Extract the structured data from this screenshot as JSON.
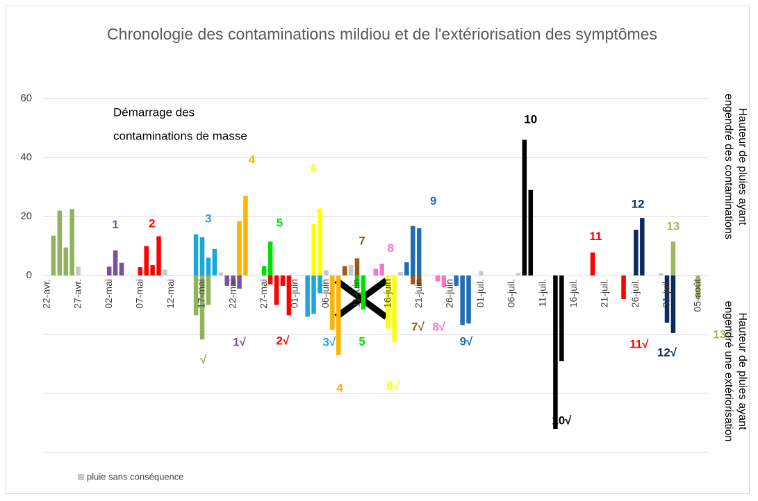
{
  "chart_data": {
    "type": "bar",
    "title": "Chronologie des contaminations mildiou et de l'extériorisation des symptômes",
    "y_title_top": [
      "Hauteur de pluies ayant",
      "engendré des contaminations"
    ],
    "y_title_bottom": [
      "Hauteur de pluies ayant",
      "engendré une extériorisation"
    ],
    "note": [
      "Démarrage des",
      "contaminations de masse"
    ],
    "categories": [
      "22-avr.",
      null,
      null,
      null,
      null,
      "27-avr.",
      null,
      null,
      null,
      null,
      "02-mai",
      null,
      null,
      null,
      null,
      "07-mai",
      null,
      null,
      null,
      null,
      "12-mai",
      null,
      null,
      null,
      null,
      "17-mai",
      null,
      null,
      null,
      null,
      "22-mai",
      null,
      null,
      null,
      null,
      "27-mai",
      null,
      null,
      null,
      null,
      "01-juin",
      null,
      null,
      null,
      null,
      "06-juin",
      null,
      null,
      null,
      null,
      "11-juin",
      null,
      null,
      null,
      null,
      "16-juin",
      null,
      null,
      null,
      null,
      "21-juin",
      null,
      null,
      null,
      null,
      "26-juin",
      null,
      null,
      null,
      null,
      "01-juil.",
      null,
      null,
      null,
      null,
      "06-juil.",
      null,
      null,
      null,
      null,
      "11-juil.",
      null,
      null,
      null,
      null,
      "16-juil.",
      null,
      null,
      null,
      null,
      "21-juil.",
      null,
      null,
      null,
      null,
      "26-juil.",
      null,
      null,
      null,
      null,
      "31-juil.",
      null,
      null,
      null,
      null,
      "05-août",
      null
    ],
    "series": [
      {
        "values": [
          null,
          13.5,
          22,
          9.5,
          22.5,
          null,
          null,
          null,
          null,
          null,
          3,
          8.5,
          4.3,
          null,
          null,
          2.8,
          10,
          3.5,
          13.3,
          null,
          null,
          null,
          null,
          null,
          14,
          13,
          6,
          9,
          null,
          null,
          null,
          18.5,
          27,
          null,
          null,
          3.2,
          11.5,
          null,
          null,
          null,
          null,
          null,
          null,
          17.5,
          22.7,
          null,
          null,
          null,
          3.2,
          null,
          5.8,
          null,
          null,
          2.2,
          4,
          null,
          null,
          null,
          4.5,
          16.8,
          16,
          null,
          null,
          null,
          null,
          null,
          null,
          null,
          null,
          null,
          null,
          null,
          null,
          null,
          null,
          null,
          null,
          46,
          29,
          null,
          null,
          null,
          null,
          null,
          null,
          null,
          null,
          null,
          7.8,
          null,
          null,
          null,
          null,
          null,
          null,
          15.5,
          19.5,
          null,
          null,
          null,
          null,
          11.5,
          null,
          null,
          null,
          null,
          null
        ],
        "colors": [
          null,
          "#8fb45a",
          "#8fb45a",
          "#8fb45a",
          "#8fb45a",
          null,
          null,
          null,
          null,
          null,
          "#7c4f9f",
          "#7c4f9f",
          "#7c4f9f",
          null,
          null,
          "#ff0000",
          "#ff0000",
          "#ff0000",
          "#ff0000",
          null,
          null,
          null,
          null,
          null,
          "#1aa7e0",
          "#1aa7e0",
          "#1aa7e0",
          "#1aa7e0",
          null,
          null,
          null,
          "#ffb300",
          "#ffb300",
          null,
          null,
          "#00e000",
          "#00e000",
          null,
          null,
          null,
          null,
          null,
          null,
          "#ffff00",
          "#ffff00",
          null,
          null,
          null,
          "#9c5718",
          null,
          "#9c5718",
          null,
          null,
          "#ff70d0",
          "#ff70d0",
          null,
          null,
          null,
          "#1f6db6",
          "#1f6db6",
          "#1f6db6",
          null,
          null,
          null,
          null,
          null,
          null,
          null,
          null,
          null,
          null,
          null,
          null,
          null,
          null,
          null,
          null,
          "#000000",
          "#000000",
          null,
          null,
          null,
          null,
          null,
          null,
          null,
          null,
          null,
          "#ff0000",
          null,
          null,
          null,
          null,
          null,
          null,
          "#0b2a5e",
          "#0b2a5e",
          null,
          null,
          null,
          null,
          "#9bbb59",
          null,
          null,
          null,
          null,
          null
        ]
      },
      {
        "values": [
          null,
          null,
          null,
          null,
          null,
          null,
          null,
          null,
          null,
          null,
          null,
          null,
          null,
          null,
          null,
          null,
          null,
          null,
          null,
          null,
          null,
          null,
          null,
          null,
          -13.5,
          -21.7,
          -10,
          null,
          null,
          -3.5,
          -3.5,
          -4.5,
          null,
          null,
          null,
          null,
          -3,
          -10,
          -3.5,
          -13.5,
          null,
          null,
          -14,
          -13,
          -6,
          null,
          -18.5,
          -27,
          null,
          null,
          -4.2,
          -11.5,
          null,
          null,
          null,
          -18,
          -22.5,
          null,
          null,
          -3,
          -3.5,
          null,
          null,
          -2,
          -4,
          null,
          -3.5,
          -16.8,
          -16.3,
          null,
          null,
          null,
          null,
          null,
          null,
          null,
          null,
          null,
          null,
          null,
          null,
          null,
          -52,
          -29,
          null,
          null,
          null,
          null,
          null,
          null,
          null,
          null,
          null,
          -8,
          null,
          null,
          null,
          null,
          null,
          null,
          -16,
          -19.5,
          null,
          null,
          null,
          -8,
          null
        ],
        "colors": [
          null,
          null,
          null,
          null,
          null,
          null,
          null,
          null,
          null,
          null,
          null,
          null,
          null,
          null,
          null,
          null,
          null,
          null,
          null,
          null,
          null,
          null,
          null,
          null,
          "#8fb45a",
          "#8fb45a",
          "#8fb45a",
          null,
          null,
          "#7c4f9f",
          "#7c4f9f",
          "#7c4f9f",
          null,
          null,
          null,
          null,
          "#ff0000",
          "#ff0000",
          "#ff0000",
          "#ff0000",
          null,
          null,
          "#1aa7e0",
          "#1aa7e0",
          "#1aa7e0",
          null,
          "#ffb300",
          "#ffb300",
          null,
          null,
          "#00e000",
          "#00e000",
          null,
          null,
          null,
          "#ffff00",
          "#ffff00",
          null,
          null,
          "#9c5718",
          "#9c5718",
          null,
          null,
          "#ff70d0",
          "#ff70d0",
          null,
          "#1f6db6",
          "#1f6db6",
          "#1f6db6",
          null,
          null,
          null,
          null,
          null,
          null,
          null,
          null,
          null,
          null,
          null,
          null,
          null,
          "#000000",
          "#000000",
          null,
          null,
          null,
          null,
          null,
          null,
          null,
          null,
          null,
          "#ff0000",
          null,
          null,
          null,
          null,
          null,
          null,
          "#0b2a5e",
          "#0b2a5e",
          null,
          null,
          null,
          "#9bbb59",
          null
        ]
      },
      {
        "name": "pluie sans conséquence",
        "color": "#c8c8c8",
        "values": [
          null,
          null,
          null,
          null,
          null,
          3,
          null,
          null,
          null,
          null,
          null,
          null,
          null,
          null,
          null,
          null,
          null,
          null,
          null,
          2,
          null,
          null,
          null,
          null,
          null,
          null,
          null,
          null,
          1,
          null,
          null,
          null,
          null,
          null,
          null,
          null,
          null,
          null,
          null,
          null,
          null,
          null,
          null,
          null,
          null,
          1.8,
          null,
          null,
          null,
          3.5,
          null,
          null,
          null,
          null,
          null,
          null,
          null,
          1.2,
          null,
          null,
          null,
          null,
          null,
          null,
          null,
          null,
          null,
          null,
          null,
          null,
          1.5,
          null,
          null,
          null,
          null,
          null,
          0.8,
          null,
          null,
          null,
          null,
          null,
          null,
          null,
          null,
          null,
          null,
          null,
          null,
          null,
          null,
          null,
          null,
          null,
          null,
          null,
          null,
          null,
          null,
          0.8,
          null,
          null,
          null,
          null,
          null,
          null,
          null
        ]
      }
    ],
    "annotations": [
      {
        "text": "1",
        "color": "#7c4f9f",
        "at": 11,
        "y": 17
      },
      {
        "text": "2",
        "color": "#ff0000",
        "at": 16.9,
        "y": 17.4
      },
      {
        "text": "3",
        "color": "#1aa7e0",
        "at": 26,
        "y": 19
      },
      {
        "text": "4",
        "color": "#ffb300",
        "at": 33,
        "y": 39
      },
      {
        "text": "5",
        "color": "#00e000",
        "at": 37.5,
        "y": 17.6
      },
      {
        "text": "6",
        "color": "#ffff00",
        "at": 43,
        "y": 36
      },
      {
        "text": "7",
        "color": "#9c5718",
        "at": 50.8,
        "y": 11.5
      },
      {
        "text": "8",
        "color": "#ff70d0",
        "at": 55.4,
        "y": 9
      },
      {
        "text": "9",
        "color": "#1f6db6",
        "at": 62.3,
        "y": 25
      },
      {
        "text": "10",
        "color": "#000000",
        "at": 78,
        "y": 52.7
      },
      {
        "text": "11",
        "color": "#ff0000",
        "at": 88.5,
        "y": 13
      },
      {
        "text": "12",
        "color": "#0b2a5e",
        "at": 95.3,
        "y": 24
      },
      {
        "text": "13",
        "color": "#9bbb59",
        "at": 101,
        "y": 16.5
      },
      {
        "text": "√",
        "color": "#8fb45a",
        "at": 25.2,
        "y": -28.7
      },
      {
        "text": "1√",
        "color": "#7c4f9f",
        "at": 31,
        "y": -22.8
      },
      {
        "text": "2√",
        "color": "#ff0000",
        "at": 38,
        "y": -22.4
      },
      {
        "text": "3√",
        "color": "#1aa7e0",
        "at": 45.5,
        "y": -22.8
      },
      {
        "text": "4",
        "color": "#ffb300",
        "at": 47.2,
        "y": -38.4
      },
      {
        "text": "5",
        "color": "#00e000",
        "at": 50.8,
        "y": -22.6
      },
      {
        "text": "6√",
        "color": "#ffff00",
        "at": 55.8,
        "y": -37.6
      },
      {
        "text": "7√",
        "color": "#9c5718",
        "at": 59.8,
        "y": -17.6
      },
      {
        "text": "8√",
        "color": "#ff70d0",
        "at": 63.2,
        "y": -17.6
      },
      {
        "text": "9√",
        "color": "#1f6db6",
        "at": 67.6,
        "y": -22.6
      },
      {
        "text": "10√",
        "color": "#000000",
        "at": 83,
        "y": -49.4
      },
      {
        "text": "11√",
        "color": "#ff0000",
        "at": 95.5,
        "y": -23.5
      },
      {
        "text": "12√",
        "color": "#0b2a5e",
        "at": 100,
        "y": -26.4
      },
      {
        "text": "13√",
        "color": "#9bbb59",
        "at": 109,
        "y": -20.2
      }
    ],
    "ylim": [
      -60,
      60
    ],
    "yticks": [
      0,
      20,
      40,
      60
    ],
    "grid_values": [
      -60,
      -40,
      -20,
      20,
      40,
      60
    ],
    "grid": true,
    "legend": "bottom-left"
  }
}
